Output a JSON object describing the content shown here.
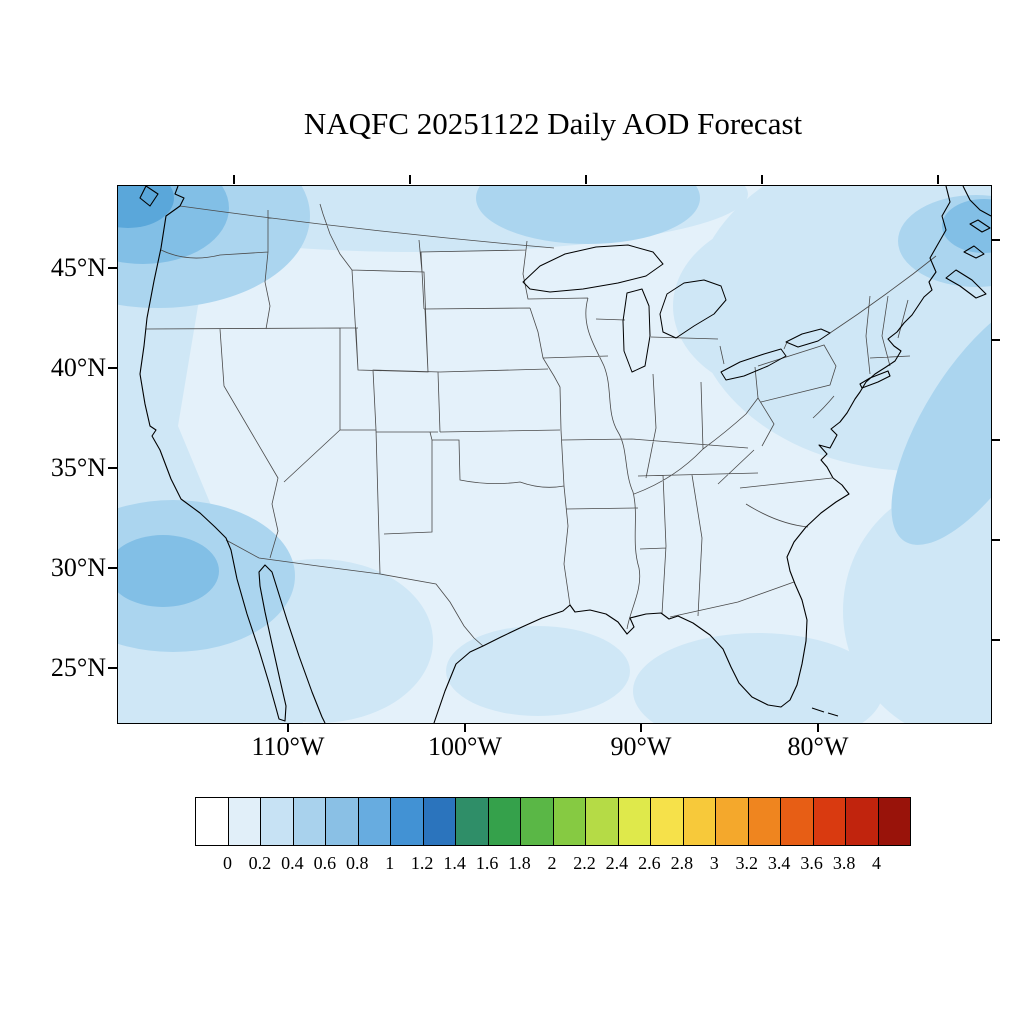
{
  "title": "NAQFC 20251122 Daily AOD Forecast",
  "axes": {
    "lat_labels": [
      "45°N",
      "40°N",
      "35°N",
      "30°N",
      "25°N"
    ],
    "lon_labels": [
      "110°W",
      "100°W",
      "90°W",
      "80°W"
    ]
  },
  "colorbar": {
    "labels": [
      "0",
      "0.2",
      "0.4",
      "0.6",
      "0.8",
      "1",
      "1.2",
      "1.4",
      "1.6",
      "1.8",
      "2",
      "2.2",
      "2.4",
      "2.6",
      "2.8",
      "3",
      "3.2",
      "3.4",
      "3.6",
      "3.8",
      "4"
    ],
    "colors": [
      "#ffffff",
      "#e1eff9",
      "#c7e2f4",
      "#a9d2ed",
      "#8ac0e5",
      "#67ace0",
      "#4292d4",
      "#2b74bd",
      "#2f8e68",
      "#35a14b",
      "#5ab746",
      "#86ca42",
      "#b5db46",
      "#dfe94b",
      "#f6e14a",
      "#f7c93a",
      "#f4a82c",
      "#ef851f",
      "#e75e15",
      "#d93a10",
      "#c1240d",
      "#99130a"
    ]
  },
  "field_levels": {
    "l1": "#e4f1fa",
    "l2": "#cfe7f6",
    "l3": "#abd5ef",
    "l4": "#82bfe6",
    "l5": "#5aa7da"
  },
  "map_lines": {
    "coast_color": "#000000",
    "state_border_color": "#4a4a4a"
  }
}
